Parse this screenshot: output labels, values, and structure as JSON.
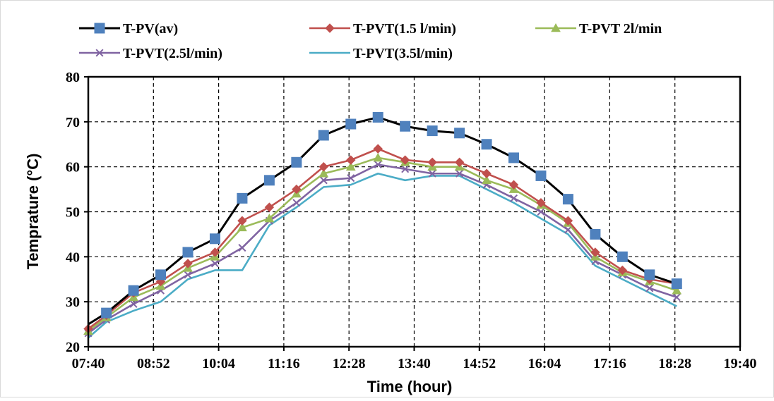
{
  "chart_data": {
    "type": "line",
    "title": "",
    "xlabel": "Time (hour)",
    "ylabel": "Temprature (°C)",
    "x_ticks": [
      "07:40",
      "08:52",
      "10:04",
      "11:16",
      "12:28",
      "13:40",
      "14:52",
      "16:04",
      "17:16",
      "18:28",
      "19:40"
    ],
    "xlim": [
      "07:40",
      "19:40"
    ],
    "ylim": [
      20,
      80
    ],
    "y_ticks": [
      20,
      30,
      40,
      50,
      60,
      70,
      80
    ],
    "grid": true,
    "legend_position": "top",
    "x": [
      "07:40",
      "08:00",
      "08:30",
      "09:00",
      "09:30",
      "10:00",
      "10:30",
      "11:00",
      "11:30",
      "12:00",
      "12:30",
      "13:00",
      "13:30",
      "14:00",
      "14:30",
      "15:00",
      "15:30",
      "16:00",
      "16:30",
      "17:00",
      "17:30",
      "18:00",
      "18:30"
    ],
    "series": [
      {
        "name": "T-PV(av)",
        "color": "#000000",
        "marker": "square",
        "marker_color": "#4f81bd",
        "values": [
          25,
          27.5,
          32.5,
          36,
          41,
          44,
          53,
          57,
          61,
          67,
          69.5,
          71,
          69,
          68,
          67.5,
          65,
          62,
          58,
          52.8,
          45,
          40,
          36,
          34
        ]
      },
      {
        "name": "T-PVT(1.5 l/min)",
        "color": "#c0504d",
        "marker": "diamond",
        "marker_color": "#c0504d",
        "values": [
          24,
          27,
          32,
          34.5,
          38.5,
          41,
          48,
          51,
          55,
          60,
          61.5,
          64,
          61.5,
          61,
          61,
          58.5,
          56,
          52,
          48,
          41,
          37,
          35,
          34
        ]
      },
      {
        "name": "T-PVT 2l/min",
        "color": "#9bbb59",
        "marker": "triangle",
        "marker_color": "#9bbb59",
        "values": [
          23.5,
          26.5,
          31,
          33.5,
          37.5,
          40,
          46.5,
          48.5,
          54,
          58.5,
          60,
          62,
          61,
          60,
          60,
          57,
          55,
          51.5,
          47.5,
          40,
          36.5,
          34.5,
          32.5
        ]
      },
      {
        "name": "T-PVT(2.5l/min)",
        "color": "#8064a2",
        "marker": "x",
        "marker_color": "#8064a2",
        "values": [
          23,
          26,
          29.5,
          32.5,
          36,
          38.5,
          42,
          48,
          52,
          57,
          57.5,
          60.5,
          59.5,
          58.5,
          58.5,
          56,
          53,
          50,
          46,
          39,
          36,
          33,
          31
        ]
      },
      {
        "name": "T-PVT(3.5l/min)",
        "color": "#4bacc6",
        "marker": "none",
        "marker_color": "#4bacc6",
        "values": [
          22,
          25.5,
          28,
          30,
          35,
          37,
          37,
          47,
          51,
          55.5,
          56,
          58.5,
          57,
          58,
          58,
          55,
          52,
          48.5,
          45,
          38,
          35,
          32,
          29
        ]
      }
    ]
  }
}
